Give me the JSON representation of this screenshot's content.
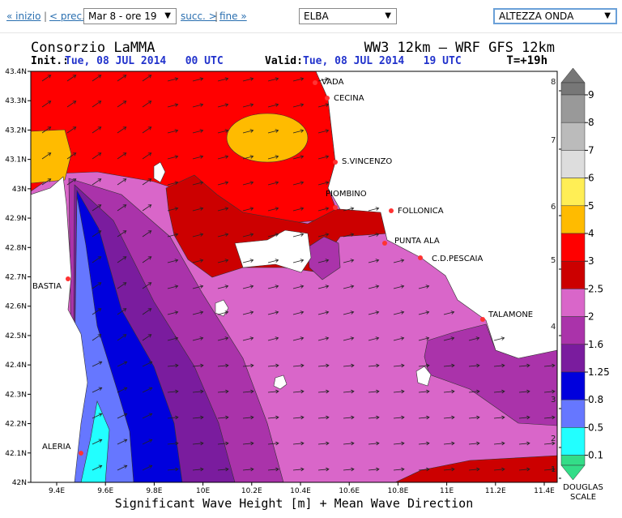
{
  "nav": {
    "first": "« inizio",
    "separator": "|",
    "prev": "< prec.",
    "time": "Mar 8 - ore 19",
    "next": "succ. >",
    "last": "fine »",
    "region": "ELBA",
    "variable": "ALTEZZA ONDA"
  },
  "header": {
    "title_left": "Consorzio LaMMA",
    "title_right": "WW3 12km – WRF GFS 12km",
    "init_label": "Init.:",
    "init_value": "Tue, 08 JUL 2014   00 UTC",
    "valid_label": "Valid:",
    "valid_value": "Tue, 08 JUL 2014   19 UTC",
    "forecast": "T=+19h"
  },
  "map": {
    "lat_ticks": [
      "43.4N",
      "43.3N",
      "43.2N",
      "43.1N",
      "43N",
      "42.9N",
      "42.8N",
      "42.7N",
      "42.6N",
      "42.5N",
      "42.4N",
      "42.3N",
      "42.2N",
      "42.1N",
      "42N"
    ],
    "lon_ticks": [
      "9.4E",
      "9.6E",
      "9.8E",
      "10E",
      "10.2E",
      "10.4E",
      "10.6E",
      "10.8E",
      "11E",
      "11.2E",
      "11.4E"
    ],
    "places": [
      "VADA",
      "CECINA",
      "S.VINCENZO",
      "PIOMBINO",
      "FOLLONICA",
      "PUNTA ALA",
      "C.D.PESCAIA",
      "TALAMONE",
      "BASTIA",
      "ALERIA"
    ],
    "x_label": "Significant Wave Height [m] + Mean Wave Direction"
  },
  "legend": {
    "levels": [
      9,
      8,
      7,
      6,
      5,
      4,
      3,
      2.5,
      2,
      1.6,
      1.25,
      0.8,
      0.5,
      0.1
    ],
    "douglas": [
      8,
      7,
      6,
      5,
      4,
      3,
      2,
      1
    ],
    "douglas_title": [
      "DOUGLAS",
      "SCALE"
    ]
  }
}
